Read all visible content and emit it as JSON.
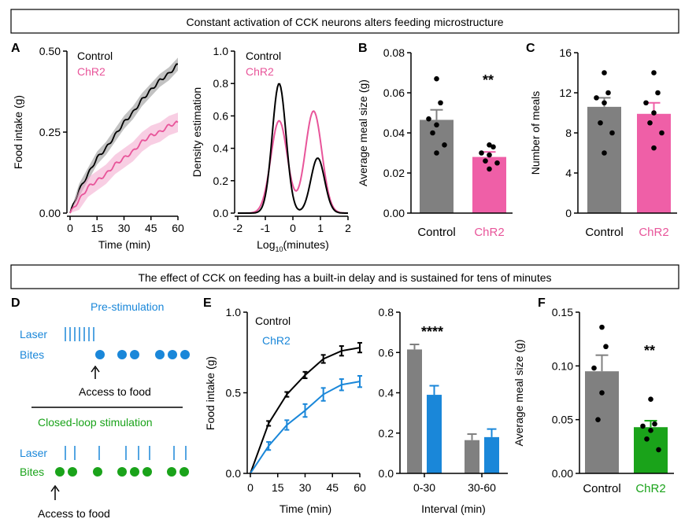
{
  "headers": {
    "top": "Constant activation of CCK neurons alters feeding microstructure",
    "bottom": "The effect of CCK on feeding has a built-in delay and is sustained for tens of minutes"
  },
  "panel_letters": {
    "A": "A",
    "B": "B",
    "C": "C",
    "D": "D",
    "E": "E",
    "F": "F"
  },
  "colors": {
    "control": "#000000",
    "chr2_pink": "#e8559a",
    "chr2_pink_bar": "#ef5fa7",
    "gray_bar": "#808080",
    "blue": "#1a87d9",
    "green": "#1aa31a"
  },
  "panel_d": {
    "pre_title": "Pre-stimulation",
    "closed_title": "Closed-loop stimulation",
    "laser_label": "Laser",
    "bites_label": "Bites",
    "access_label": "Access to food"
  },
  "chart_data": [
    {
      "id": "A1",
      "type": "line",
      "title": "",
      "xlabel": "Time (min)",
      "ylabel": "Food intake (g)",
      "xlim": [
        0,
        60
      ],
      "ylim": [
        0,
        0.5
      ],
      "xticks": [
        "0",
        "15",
        "30",
        "45",
        "60"
      ],
      "yticks": [
        "0.00",
        "0.25",
        "0.50"
      ],
      "legend": [
        "Control",
        "ChR2"
      ],
      "series": [
        {
          "name": "Control",
          "x": [
            0,
            5,
            10,
            15,
            20,
            25,
            30,
            35,
            40,
            45,
            50,
            55,
            60
          ],
          "y": [
            0,
            0.07,
            0.12,
            0.17,
            0.2,
            0.24,
            0.28,
            0.31,
            0.35,
            0.38,
            0.41,
            0.43,
            0.46
          ],
          "band": 0.02
        },
        {
          "name": "ChR2",
          "x": [
            0,
            5,
            10,
            15,
            20,
            25,
            30,
            35,
            40,
            45,
            50,
            55,
            60
          ],
          "y": [
            0,
            0.04,
            0.08,
            0.1,
            0.12,
            0.15,
            0.17,
            0.19,
            0.22,
            0.24,
            0.25,
            0.27,
            0.28
          ],
          "band": 0.03
        }
      ]
    },
    {
      "id": "A2",
      "type": "line",
      "xlabel": "Log10(minutes)",
      "xlabel_main": "Log",
      "xlabel_sub": "10",
      "xlabel_rest": "(minutes)",
      "ylabel": "Density estimation",
      "xlim": [
        -2,
        2
      ],
      "ylim": [
        0,
        1.0
      ],
      "xticks": [
        "-2",
        "-1",
        "0",
        "1",
        "2"
      ],
      "yticks": [
        "0.0",
        "0.2",
        "0.4",
        "0.6",
        "0.8",
        "1.0"
      ],
      "legend": [
        "Control",
        "ChR2"
      ],
      "series": [
        {
          "name": "Control",
          "components": [
            [
              0.8,
              -0.5,
              0.25
            ],
            [
              0.34,
              0.9,
              0.25
            ]
          ]
        },
        {
          "name": "ChR2",
          "components": [
            [
              0.57,
              -0.5,
              0.3
            ],
            [
              0.63,
              0.75,
              0.3
            ]
          ]
        }
      ]
    },
    {
      "id": "B",
      "type": "bar",
      "ylabel": "Average meal size (g)",
      "ylim": [
        0,
        0.08
      ],
      "yticks": [
        "0.00",
        "0.02",
        "0.04",
        "0.06",
        "0.08"
      ],
      "categories": [
        "Control",
        "ChR2"
      ],
      "values": [
        0.0465,
        0.028
      ],
      "errors": [
        0.005,
        0.0025
      ],
      "points": [
        [
          0.067,
          0.055,
          0.047,
          0.044,
          0.04,
          0.034,
          0.03
        ],
        [
          0.034,
          0.033,
          0.03,
          0.029,
          0.026,
          0.025,
          0.022
        ]
      ],
      "significance": "**"
    },
    {
      "id": "C",
      "type": "bar",
      "ylabel": "Number of meals",
      "ylim": [
        0,
        16
      ],
      "yticks": [
        "0",
        "4",
        "8",
        "12",
        "16"
      ],
      "categories": [
        "Control",
        "ChR2"
      ],
      "values": [
        10.6,
        9.9
      ],
      "errors": [
        0.9,
        1.1
      ],
      "points": [
        [
          14,
          12,
          11.5,
          11,
          9,
          8,
          6
        ],
        [
          14,
          12,
          11,
          10,
          9,
          8,
          6.5
        ]
      ]
    },
    {
      "id": "E1",
      "type": "line",
      "xlabel": "Time (min)",
      "ylabel": "Food intake (g)",
      "xlim": [
        0,
        60
      ],
      "ylim": [
        0,
        1.0
      ],
      "xticks": [
        "0",
        "15",
        "30",
        "45",
        "60"
      ],
      "yticks": [
        "0.0",
        "0.5",
        "1.0"
      ],
      "legend": [
        "Control",
        "ChR2"
      ],
      "series": [
        {
          "name": "Control",
          "x": [
            0,
            10,
            20,
            30,
            40,
            50,
            60
          ],
          "y": [
            0,
            0.31,
            0.49,
            0.61,
            0.71,
            0.76,
            0.78
          ],
          "err": [
            0,
            0.015,
            0.015,
            0.02,
            0.025,
            0.03,
            0.03
          ]
        },
        {
          "name": "ChR2",
          "x": [
            0,
            10,
            20,
            30,
            40,
            50,
            60
          ],
          "y": [
            0,
            0.17,
            0.3,
            0.39,
            0.49,
            0.55,
            0.57
          ],
          "err": [
            0,
            0.025,
            0.03,
            0.04,
            0.04,
            0.035,
            0.035
          ]
        }
      ]
    },
    {
      "id": "E2",
      "type": "bar",
      "xlabel": "Interval (min)",
      "ylim": [
        0,
        0.8
      ],
      "yticks": [
        "0.0",
        "0.2",
        "0.4",
        "0.6",
        "0.8"
      ],
      "categories": [
        "0-30",
        "30-60"
      ],
      "series": [
        {
          "name": "Control",
          "values": [
            0.615,
            0.165
          ],
          "errors": [
            0.025,
            0.03
          ]
        },
        {
          "name": "ChR2",
          "values": [
            0.39,
            0.18
          ],
          "errors": [
            0.045,
            0.04
          ]
        }
      ],
      "significance": "****"
    },
    {
      "id": "F",
      "type": "bar",
      "ylabel": "Average meal size (g)",
      "ylim": [
        0,
        0.15
      ],
      "yticks": [
        "0.00",
        "0.05",
        "0.10",
        "0.15"
      ],
      "categories": [
        "Control",
        "ChR2"
      ],
      "values": [
        0.095,
        0.043
      ],
      "errors": [
        0.015,
        0.006
      ],
      "points": [
        [
          0.136,
          0.118,
          0.098,
          0.075,
          0.05
        ],
        [
          0.069,
          0.046,
          0.044,
          0.04,
          0.032,
          0.022
        ]
      ],
      "significance": "**"
    }
  ]
}
